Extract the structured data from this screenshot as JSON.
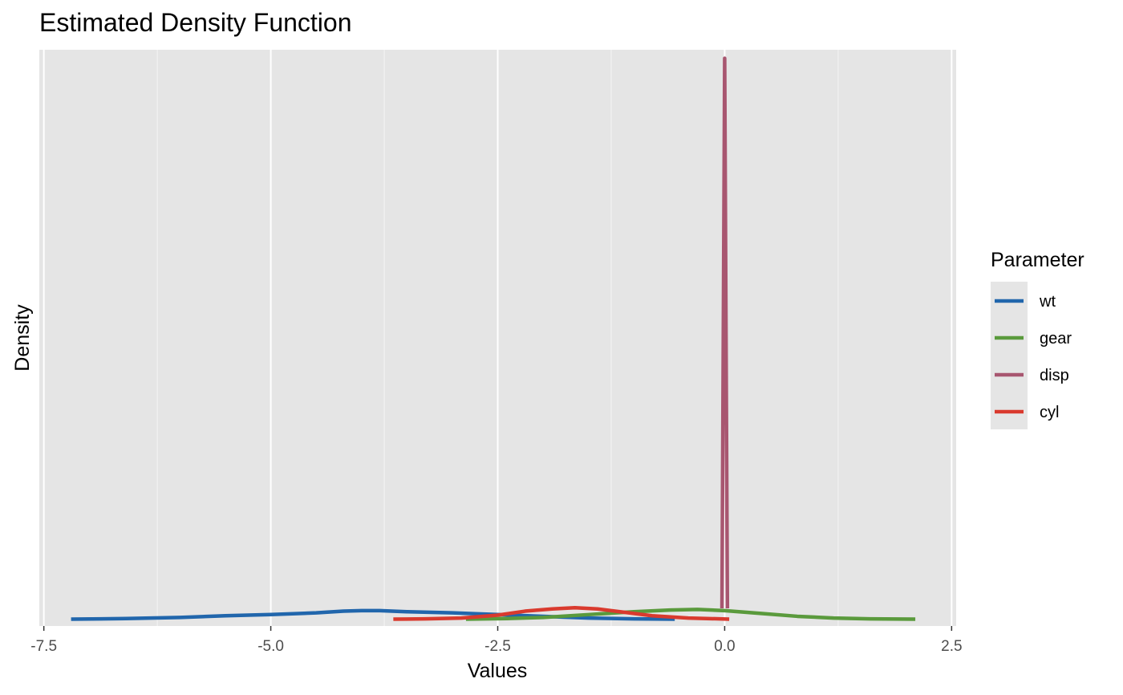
{
  "chart_data": {
    "type": "line",
    "title": "Estimated Density Function",
    "xlabel": "Values",
    "ylabel": "Density",
    "xlim": [
      -7.55,
      2.55
    ],
    "ylim": [
      -0.012,
      1.0
    ],
    "x_ticks": [
      -7.5,
      -5.0,
      -2.5,
      0.0,
      2.5
    ],
    "x_tick_labels": [
      "-7.5",
      "-5.0",
      "-2.5",
      "0.0",
      "2.5"
    ],
    "y_ticks_shown": false,
    "grid": true,
    "legend": {
      "title": "Parameter",
      "position": "right"
    },
    "series": [
      {
        "name": "wt",
        "color": "#2166ac",
        "points": [
          [
            -7.2,
            0.0
          ],
          [
            -6.6,
            0.001
          ],
          [
            -6.0,
            0.003
          ],
          [
            -5.5,
            0.006
          ],
          [
            -5.0,
            0.008
          ],
          [
            -4.5,
            0.011
          ],
          [
            -4.2,
            0.014
          ],
          [
            -4.0,
            0.015
          ],
          [
            -3.8,
            0.015
          ],
          [
            -3.5,
            0.013
          ],
          [
            -3.0,
            0.011
          ],
          [
            -2.5,
            0.008
          ],
          [
            -2.0,
            0.005
          ],
          [
            -1.5,
            0.002
          ],
          [
            -1.0,
            0.0005
          ],
          [
            -0.55,
            0.0
          ]
        ]
      },
      {
        "name": "gear",
        "color": "#5a9a3c",
        "points": [
          [
            -2.85,
            0.0
          ],
          [
            -2.4,
            0.001
          ],
          [
            -2.0,
            0.003
          ],
          [
            -1.5,
            0.008
          ],
          [
            -1.0,
            0.013
          ],
          [
            -0.6,
            0.016
          ],
          [
            -0.3,
            0.017
          ],
          [
            0.0,
            0.015
          ],
          [
            0.4,
            0.01
          ],
          [
            0.8,
            0.005
          ],
          [
            1.2,
            0.002
          ],
          [
            1.6,
            0.0005
          ],
          [
            2.1,
            0.0
          ]
        ]
      },
      {
        "name": "disp",
        "color": "#a85670",
        "points": [
          [
            -0.03,
            0.019
          ],
          [
            -0.015,
            0.5
          ],
          [
            0.0,
            0.985
          ],
          [
            0.015,
            0.5
          ],
          [
            0.03,
            0.019
          ]
        ]
      },
      {
        "name": "cyl",
        "color": "#d93a2e",
        "points": [
          [
            -3.65,
            0.0
          ],
          [
            -3.3,
            0.0005
          ],
          [
            -2.9,
            0.002
          ],
          [
            -2.5,
            0.007
          ],
          [
            -2.2,
            0.014
          ],
          [
            -1.9,
            0.018
          ],
          [
            -1.65,
            0.02
          ],
          [
            -1.4,
            0.018
          ],
          [
            -1.1,
            0.012
          ],
          [
            -0.8,
            0.006
          ],
          [
            -0.4,
            0.002
          ],
          [
            0.05,
            0.0
          ]
        ]
      }
    ]
  }
}
